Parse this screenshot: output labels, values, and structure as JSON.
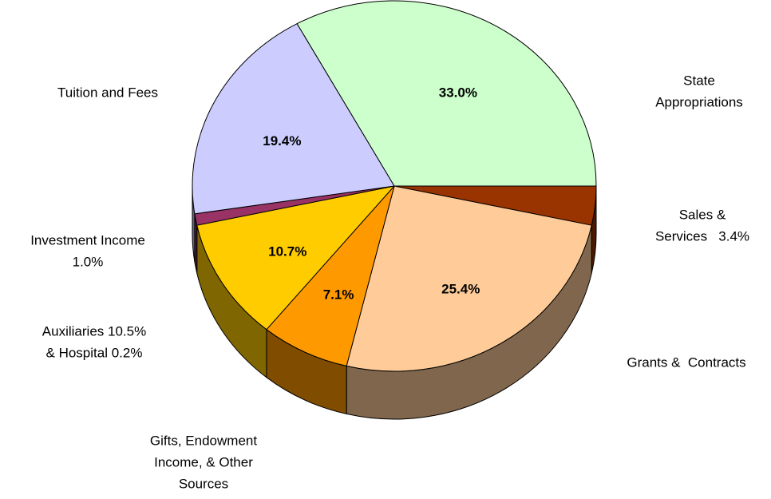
{
  "chart_data": {
    "type": "pie",
    "categories": [
      [
        "State",
        "Appropriations"
      ],
      [
        "Sales &",
        "Services   3.4%"
      ],
      [
        "Grants &  Contracts"
      ],
      [
        "Gifts, Endowment",
        "Income, & Other",
        "Sources"
      ],
      [
        "Auxiliaries 10.5%",
        "& Hospital 0.2%"
      ],
      [
        "Investment Income",
        "1.0%"
      ],
      [
        "Tuition and Fees"
      ]
    ],
    "values": [
      33.0,
      3.4,
      25.4,
      7.1,
      10.7,
      1.0,
      19.4
    ],
    "value_labels": [
      "33.0%",
      null,
      "25.4%",
      "7.1%",
      "10.7%",
      null,
      "19.4%"
    ],
    "colors": [
      "#CCFFCC",
      "#993300",
      "#FFCC99",
      "#FF9900",
      "#FFCC00",
      "#993366",
      "#CCCCFF"
    ]
  }
}
